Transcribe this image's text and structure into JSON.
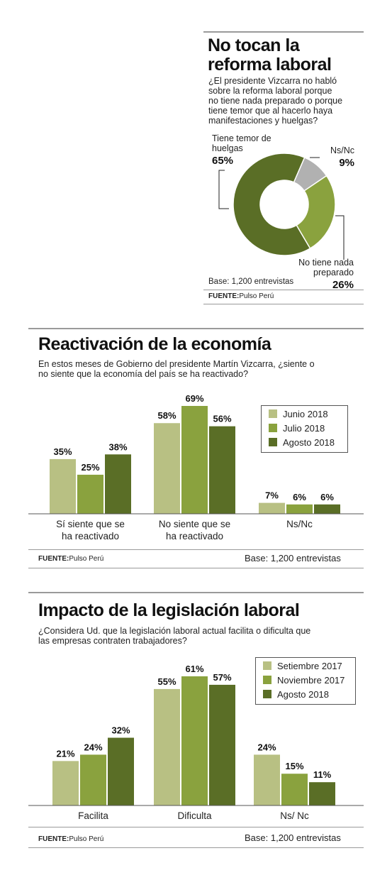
{
  "colors": {
    "light": "#b8c083",
    "mid": "#8aa23e",
    "dark": "#5a6e26",
    "gray": "#b1b1b1",
    "rule": "#9a9a9a"
  },
  "section1": {
    "title_line1": "No tocan la",
    "title_line2": "reforma laboral",
    "question_lines": [
      "¿El presidente Vizcarra no habló",
      "sobre la reforma laboral porque",
      "no tiene nada preparado o porque",
      "tiene temor que al hacerlo haya",
      "manifestaciones y huelgas?"
    ],
    "base": "Base: 1,200 entrevistas",
    "source_label": "FUENTE:",
    "source_value": "Pulso Perú"
  },
  "section2": {
    "title": "Reactivación de la economía",
    "question_lines": [
      "En estos meses de Gobierno del presidente Martín Vizcarra, ¿siente o",
      "no siente que la economía del país se ha reactivado?"
    ],
    "base": "Base: 1,200 entrevistas",
    "source_label": "FUENTE:",
    "source_value": "Pulso Perú"
  },
  "section3": {
    "title": "Impacto de la legislación laboral",
    "question_lines": [
      "¿Considera Ud. que la legislación laboral actual facilita o dificulta que",
      "las empresas contraten trabajadores?"
    ],
    "base": "Base: 1,200 entrevistas",
    "source_label": "FUENTE:",
    "source_value": "Pulso Perú"
  },
  "chart_data": [
    {
      "type": "pie",
      "labels": [
        "Tiene temor de huelgas",
        "Ns/Nc",
        "No tiene nada preparado"
      ],
      "label_lines": [
        [
          "Tiene temor de",
          "huelgas"
        ],
        [
          "Ns/Nc"
        ],
        [
          "No tiene nada",
          "preparado"
        ]
      ],
      "values": [
        65,
        9,
        26
      ],
      "value_labels": [
        "65%",
        "9%",
        "26%"
      ],
      "colors": [
        "#5a6e26",
        "#b1b1b1",
        "#8aa23e"
      ]
    },
    {
      "type": "bar",
      "categories": [
        "Sí siente que se ha reactivado",
        "No siente que se ha reactivado",
        "Ns/Nc"
      ],
      "category_lines": [
        [
          "Sí siente que se",
          "ha reactivado"
        ],
        [
          "No siente que se",
          "ha reactivado"
        ],
        [
          "Ns/Nc"
        ]
      ],
      "series": [
        {
          "name": "Junio 2018",
          "values": [
            35,
            58,
            7
          ],
          "labels": [
            "35%",
            "58%",
            "7%"
          ]
        },
        {
          "name": "Julio 2018",
          "values": [
            25,
            69,
            6
          ],
          "labels": [
            "25%",
            "69%",
            "6%"
          ]
        },
        {
          "name": "Agosto 2018",
          "values": [
            38,
            56,
            6
          ],
          "labels": [
            "38%",
            "56%",
            "6%"
          ]
        }
      ],
      "ylim": [
        0,
        69
      ]
    },
    {
      "type": "bar",
      "categories": [
        "Facilita",
        "Dificulta",
        "Ns/ Nc"
      ],
      "category_lines": [
        [
          "Facilita"
        ],
        [
          "Dificulta"
        ],
        [
          "Ns/ Nc"
        ]
      ],
      "series": [
        {
          "name": "Setiembre 2017",
          "values": [
            21,
            55,
            24
          ],
          "labels": [
            "21%",
            "55%",
            "24%"
          ]
        },
        {
          "name": "Noviembre 2017",
          "values": [
            24,
            61,
            15
          ],
          "labels": [
            "24%",
            "61%",
            "15%"
          ]
        },
        {
          "name": "Agosto 2018",
          "values": [
            32,
            57,
            11
          ],
          "labels": [
            "32%",
            "57%",
            "11%"
          ]
        }
      ],
      "ylim": [
        0,
        61
      ]
    }
  ]
}
